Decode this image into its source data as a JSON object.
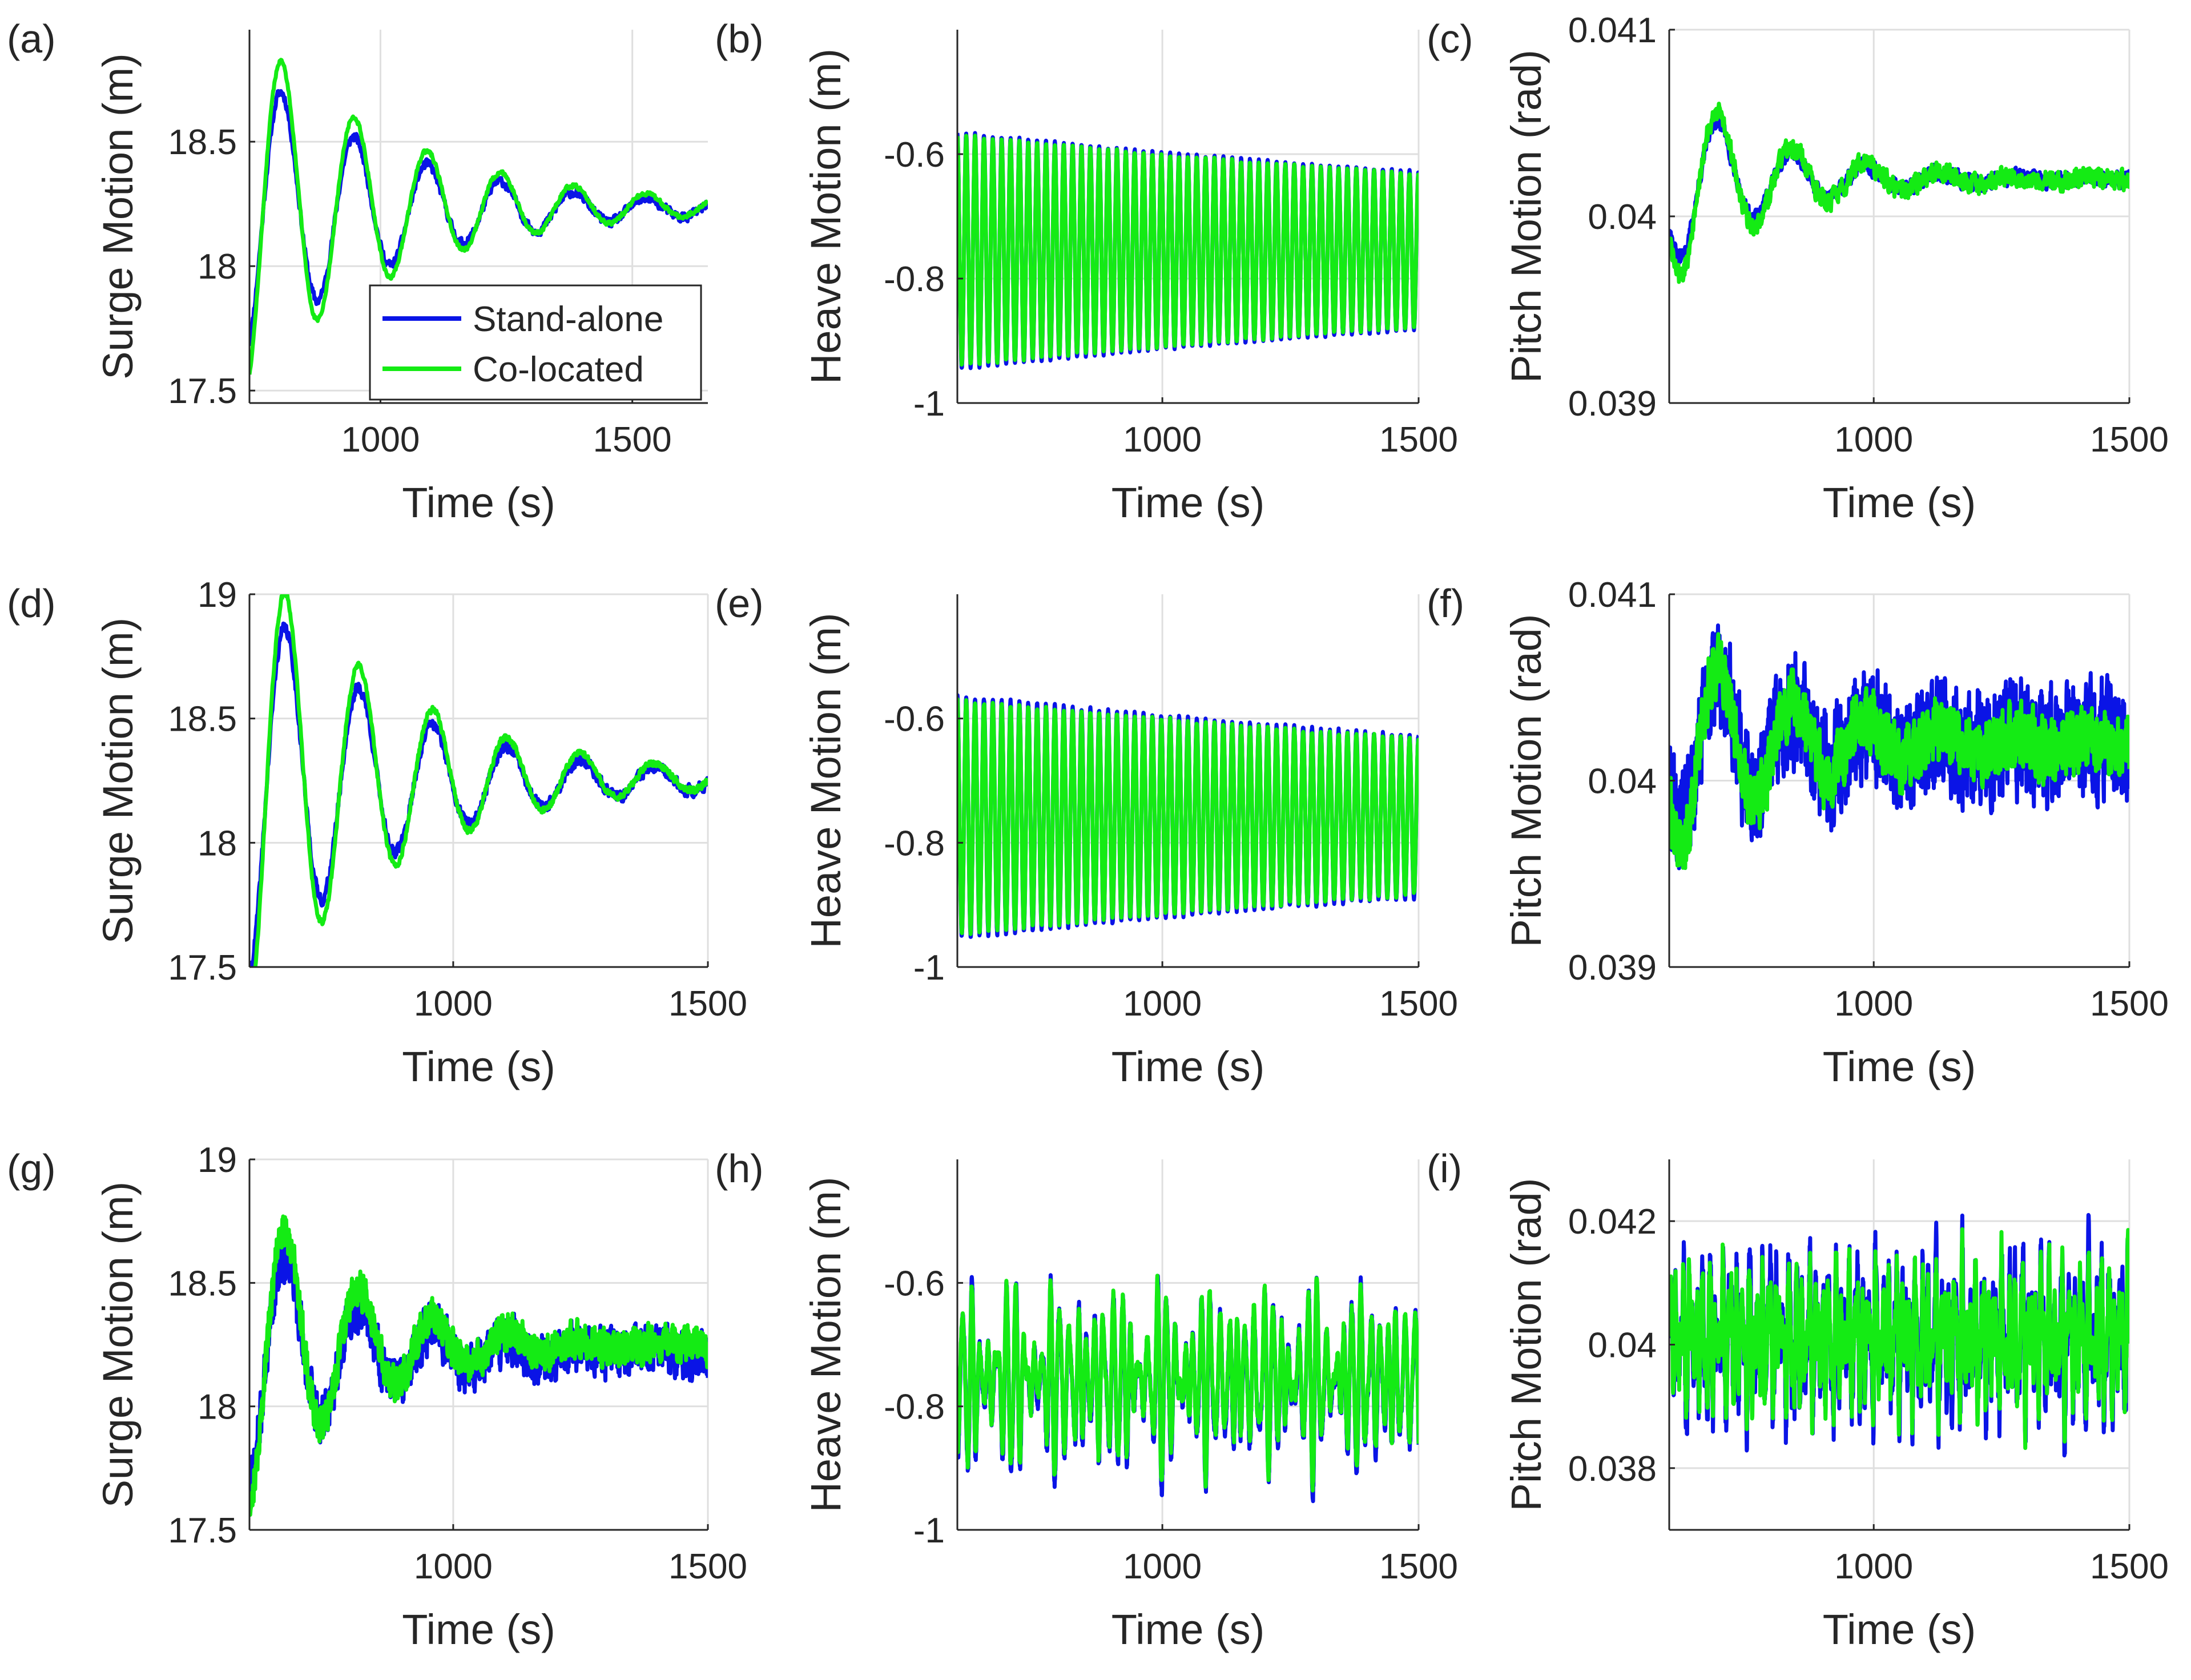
{
  "figure": {
    "legend": {
      "entries": [
        "Stand-alone",
        "Co-located"
      ]
    },
    "colors": {
      "stand_alone": "#0a14e6",
      "co_located": "#14eb14",
      "axis": "#262626",
      "grid": "#dfdfdf"
    }
  },
  "chart_data": [
    {
      "id": "a",
      "panel_label": "(a)",
      "type": "line",
      "title": "",
      "xlabel": "Time (s)",
      "ylabel": "Surge Motion (m)",
      "xlim": [
        740,
        1650
      ],
      "ylim": [
        17.45,
        18.95
      ],
      "xticks": [
        1000,
        1500
      ],
      "xtick_labels": [
        "1000",
        "1500"
      ],
      "yticks": [
        17.5,
        18,
        18.5
      ],
      "ytick_labels": [
        "17.5",
        "18",
        "18.5"
      ],
      "grid": true,
      "legend": {
        "show": true,
        "placement": "lower-right"
      },
      "series": [
        {
          "name": "Stand-alone",
          "key": "stand_alone",
          "model": {
            "kind": "decay",
            "x0": 740,
            "x1": 1650,
            "center": 18.23,
            "amp": 0.58,
            "tau": 300,
            "period": 145,
            "phase": -1.2,
            "noise": 0.018,
            "seed": 11,
            "n": 700
          }
        },
        {
          "name": "Co-located",
          "key": "co_located",
          "model": {
            "kind": "decay",
            "x0": 740,
            "x1": 1650,
            "center": 18.24,
            "amp": 0.72,
            "tau": 300,
            "period": 145,
            "phase": -1.2,
            "noise": 0.008,
            "seed": 12,
            "n": 700
          }
        }
      ]
    },
    {
      "id": "b",
      "panel_label": "(b)",
      "type": "line",
      "title": "",
      "xlabel": "Time (s)",
      "ylabel": "Heave Motion (m)",
      "xlim": [
        600,
        1500
      ],
      "ylim": [
        -1.0,
        -0.4
      ],
      "xticks": [
        1000,
        1500
      ],
      "xtick_labels": [
        "1000",
        "1500"
      ],
      "yticks": [
        -1,
        -0.8,
        -0.6
      ],
      "ytick_labels": [
        "-1",
        "-0.8",
        "-0.6"
      ],
      "grid": true,
      "legend": {
        "show": false
      },
      "series": [
        {
          "name": "Stand-alone",
          "key": "stand_alone",
          "model": {
            "kind": "decay",
            "x0": 600,
            "x1": 1500,
            "center": -0.755,
            "amp": 0.19,
            "tau": 2200,
            "period": 17.3,
            "phase": 1.57,
            "noise": 0.002,
            "seed": 21,
            "n": 2400
          }
        },
        {
          "name": "Co-located",
          "key": "co_located",
          "model": {
            "kind": "decay",
            "x0": 600,
            "x1": 1500,
            "center": -0.755,
            "amp": 0.185,
            "tau": 2200,
            "period": 17.3,
            "phase": 1.57,
            "noise": 0.002,
            "seed": 22,
            "n": 2400
          }
        }
      ]
    },
    {
      "id": "c",
      "panel_label": "(c)",
      "type": "line",
      "title": "",
      "xlabel": "Time (s)",
      "ylabel": "Pitch Motion (rad)",
      "xlim": [
        600,
        1500
      ],
      "ylim": [
        0.039,
        0.041
      ],
      "xticks": [
        1000,
        1500
      ],
      "xtick_labels": [
        "1000",
        "1500"
      ],
      "yticks": [
        0.039,
        0.04,
        0.041
      ],
      "ytick_labels": [
        "0.039",
        "0.04",
        "0.041"
      ],
      "grid": true,
      "legend": {
        "show": false
      },
      "series": [
        {
          "name": "Stand-alone",
          "key": "stand_alone",
          "model": {
            "kind": "decay",
            "x0": 600,
            "x1": 1500,
            "center": 0.0402,
            "amp": 0.00048,
            "tau": 200,
            "period": 145,
            "phase": -2.6,
            "noise": 4e-05,
            "seed": 31,
            "n": 900
          }
        },
        {
          "name": "Co-located",
          "key": "co_located",
          "model": {
            "kind": "decay",
            "x0": 600,
            "x1": 1500,
            "center": 0.0402,
            "amp": 0.00058,
            "tau": 200,
            "period": 145,
            "phase": -2.6,
            "noise": 5e-05,
            "seed": 32,
            "n": 900
          }
        }
      ]
    },
    {
      "id": "d",
      "panel_label": "(d)",
      "type": "line",
      "title": "",
      "xlabel": "Time (s)",
      "ylabel": "Surge Motion (m)",
      "xlim": [
        600,
        1500
      ],
      "ylim": [
        17.5,
        19.0
      ],
      "xticks": [
        1000,
        1500
      ],
      "xtick_labels": [
        "1000",
        "1500"
      ],
      "yticks": [
        17.5,
        18,
        18.5,
        19
      ],
      "ytick_labels": [
        "17.5",
        "18",
        "18.5",
        "19"
      ],
      "grid": true,
      "legend": {
        "show": false
      },
      "series": [
        {
          "name": "Stand-alone",
          "key": "stand_alone",
          "model": {
            "kind": "decay",
            "x0": 600,
            "x1": 1500,
            "center": 18.25,
            "amp": 0.78,
            "tau": 290,
            "period": 145,
            "phase": -1.5,
            "noise": 0.022,
            "seed": 41,
            "n": 800
          }
        },
        {
          "name": "Co-located",
          "key": "co_located",
          "model": {
            "kind": "decay",
            "x0": 600,
            "x1": 1500,
            "center": 18.26,
            "amp": 0.95,
            "tau": 290,
            "period": 145,
            "phase": -1.5,
            "noise": 0.012,
            "seed": 42,
            "n": 800
          }
        }
      ]
    },
    {
      "id": "e",
      "panel_label": "(e)",
      "type": "line",
      "title": "",
      "xlabel": "Time (s)",
      "ylabel": "Heave Motion (m)",
      "xlim": [
        600,
        1500
      ],
      "ylim": [
        -1.0,
        -0.4
      ],
      "xticks": [
        1000,
        1500
      ],
      "xtick_labels": [
        "1000",
        "1500"
      ],
      "yticks": [
        -1,
        -0.8,
        -0.6
      ],
      "ytick_labels": [
        "-1",
        "-0.8",
        "-0.6"
      ],
      "grid": true,
      "legend": {
        "show": false
      },
      "series": [
        {
          "name": "Stand-alone",
          "key": "stand_alone",
          "model": {
            "kind": "decay",
            "x0": 600,
            "x1": 1500,
            "center": -0.758,
            "amp": 0.195,
            "tau": 2200,
            "period": 17.3,
            "phase": 1.57,
            "noise": 0.003,
            "seed": 51,
            "n": 2400
          }
        },
        {
          "name": "Co-located",
          "key": "co_located",
          "model": {
            "kind": "decay",
            "x0": 600,
            "x1": 1500,
            "center": -0.758,
            "amp": 0.188,
            "tau": 2200,
            "period": 17.3,
            "phase": 1.57,
            "noise": 0.003,
            "seed": 52,
            "n": 2400
          }
        }
      ]
    },
    {
      "id": "f",
      "panel_label": "(f)",
      "type": "line",
      "title": "",
      "xlabel": "Time (s)",
      "ylabel": "Pitch Motion (rad)",
      "xlim": [
        600,
        1500
      ],
      "ylim": [
        0.039,
        0.041
      ],
      "xticks": [
        1000,
        1500
      ],
      "xtick_labels": [
        "1000",
        "1500"
      ],
      "yticks": [
        0.039,
        0.04,
        0.041
      ],
      "ytick_labels": [
        "0.039",
        "0.04",
        "0.041"
      ],
      "grid": true,
      "legend": {
        "show": false
      },
      "series": [
        {
          "name": "Stand-alone",
          "key": "stand_alone",
          "model": {
            "kind": "decay",
            "x0": 600,
            "x1": 1500,
            "center": 0.0402,
            "amp": 0.0005,
            "tau": 250,
            "period": 145,
            "phase": -2.6,
            "noise": 0.00027,
            "seed": 61,
            "n": 1500
          }
        },
        {
          "name": "Co-located",
          "key": "co_located",
          "model": {
            "kind": "decay",
            "x0": 600,
            "x1": 1500,
            "center": 0.0402,
            "amp": 0.0006,
            "tau": 250,
            "period": 145,
            "phase": -2.6,
            "noise": 0.00015,
            "seed": 62,
            "n": 1500
          }
        }
      ]
    },
    {
      "id": "g",
      "panel_label": "(g)",
      "type": "line",
      "title": "",
      "xlabel": "Time (s)",
      "ylabel": "Surge Motion (m)",
      "xlim": [
        600,
        1500
      ],
      "ylim": [
        17.5,
        19.0
      ],
      "xticks": [
        1000,
        1500
      ],
      "xtick_labels": [
        "1000",
        "1500"
      ],
      "yticks": [
        17.5,
        18,
        18.5,
        19
      ],
      "ytick_labels": [
        "17.5",
        "18",
        "18.5",
        "19"
      ],
      "grid": true,
      "legend": {
        "show": false
      },
      "series": [
        {
          "name": "Stand-alone",
          "key": "stand_alone",
          "model": {
            "kind": "decay",
            "x0": 600,
            "x1": 1500,
            "center": 18.22,
            "amp": 0.55,
            "tau": 200,
            "period": 145,
            "phase": -1.5,
            "noise": 0.09,
            "seed": 71,
            "n": 1200
          }
        },
        {
          "name": "Co-located",
          "key": "co_located",
          "model": {
            "kind": "decay",
            "x0": 600,
            "x1": 1500,
            "center": 18.25,
            "amp": 0.65,
            "tau": 200,
            "period": 145,
            "phase": -1.5,
            "noise": 0.07,
            "seed": 72,
            "n": 1200
          }
        }
      ]
    },
    {
      "id": "h",
      "panel_label": "(h)",
      "type": "line",
      "title": "",
      "xlabel": "Time (s)",
      "ylabel": "Heave Motion (m)",
      "xlim": [
        600,
        1500
      ],
      "ylim": [
        -1.0,
        -0.4
      ],
      "xticks": [
        1000,
        1500
      ],
      "xtick_labels": [
        "1000",
        "1500"
      ],
      "yticks": [
        -1,
        -0.8,
        -0.6
      ],
      "ytick_labels": [
        "-1",
        "-0.8",
        "-0.6"
      ],
      "grid": true,
      "legend": {
        "show": false
      },
      "series": [
        {
          "name": "Stand-alone",
          "key": "stand_alone",
          "model": {
            "kind": "irregular",
            "x0": 600,
            "x1": 1500,
            "center": -0.76,
            "components": [
              [
                0.085,
                17.3,
                0.0
              ],
              [
                0.045,
                21.0,
                1.1
              ],
              [
                0.035,
                14.0,
                2.3
              ],
              [
                0.025,
                11.0,
                0.7
              ]
            ],
            "noise": 0.01,
            "seed": 81,
            "n": 2400
          }
        },
        {
          "name": "Co-located",
          "key": "co_located",
          "model": {
            "kind": "irregular",
            "x0": 600,
            "x1": 1500,
            "center": -0.755,
            "components": [
              [
                0.08,
                17.3,
                0.05
              ],
              [
                0.043,
                21.0,
                1.15
              ],
              [
                0.033,
                14.0,
                2.35
              ],
              [
                0.024,
                11.0,
                0.75
              ]
            ],
            "noise": 0.01,
            "seed": 82,
            "n": 2400
          }
        }
      ]
    },
    {
      "id": "i",
      "panel_label": "(i)",
      "type": "line",
      "title": "",
      "xlabel": "Time (s)",
      "ylabel": "Pitch Motion (rad)",
      "xlim": [
        600,
        1500
      ],
      "ylim": [
        0.037,
        0.043
      ],
      "xticks": [
        1000,
        1500
      ],
      "xtick_labels": [
        "1000",
        "1500"
      ],
      "yticks": [
        0.038,
        0.04,
        0.042
      ],
      "ytick_labels": [
        "0.038",
        "0.04",
        "0.042"
      ],
      "grid": true,
      "legend": {
        "show": false
      },
      "series": [
        {
          "name": "Stand-alone",
          "key": "stand_alone",
          "model": {
            "kind": "irregular",
            "x0": 600,
            "x1": 1500,
            "center": 0.0401,
            "components": [
              [
                0.0007,
                13.0,
                0.0
              ],
              [
                0.0005,
                8.5,
                1.3
              ],
              [
                0.0004,
                19.0,
                2.2
              ],
              [
                0.0003,
                5.5,
                0.4
              ]
            ],
            "noise": 0.00035,
            "seed": 91,
            "n": 1800
          }
        },
        {
          "name": "Co-located",
          "key": "co_located",
          "model": {
            "kind": "irregular",
            "x0": 600,
            "x1": 1500,
            "center": 0.0401,
            "components": [
              [
                0.0006,
                13.0,
                0.1
              ],
              [
                0.00045,
                8.5,
                1.35
              ],
              [
                0.00035,
                19.0,
                2.25
              ],
              [
                0.00025,
                5.5,
                0.45
              ]
            ],
            "noise": 0.0003,
            "seed": 92,
            "n": 1800
          }
        }
      ]
    }
  ]
}
